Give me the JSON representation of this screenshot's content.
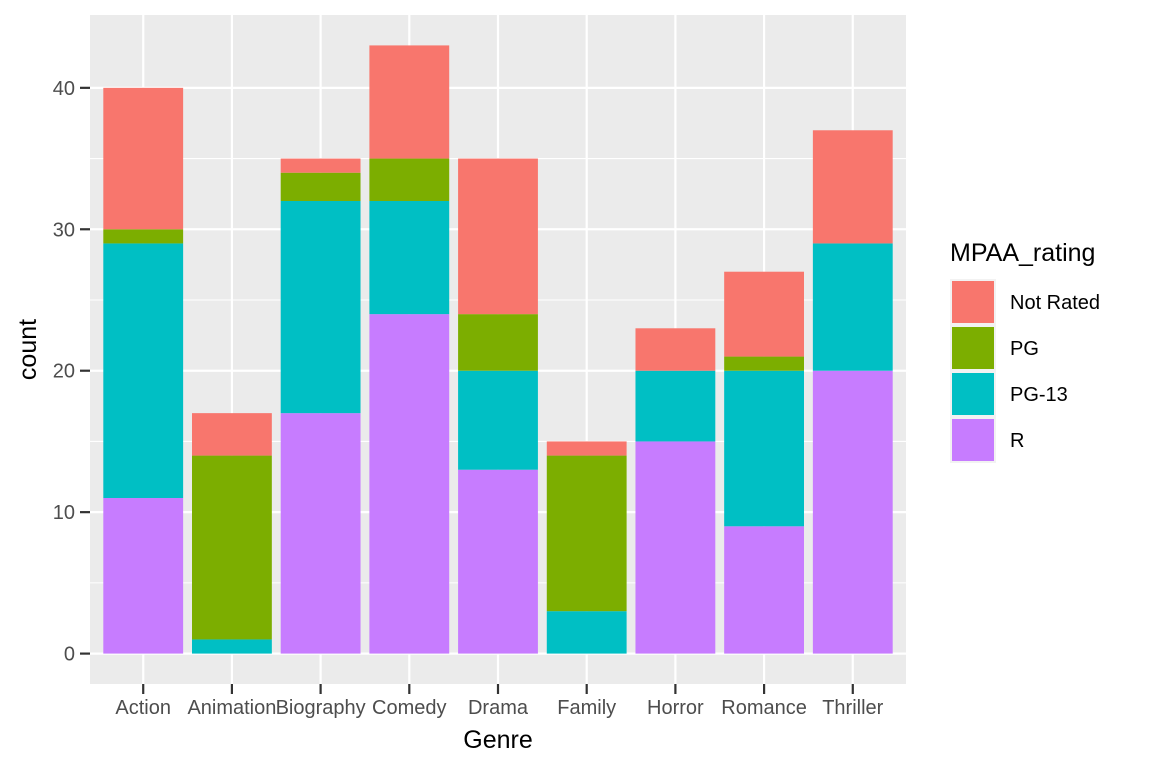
{
  "chart_data": {
    "type": "bar",
    "stacked": true,
    "categories": [
      "Action",
      "Animation",
      "Biography",
      "Comedy",
      "Drama",
      "Family",
      "Horror",
      "Romance",
      "Thriller"
    ],
    "series": [
      {
        "name": "R",
        "color": "#C77CFF",
        "values": [
          11,
          0,
          17,
          24,
          13,
          0,
          15,
          9,
          20
        ]
      },
      {
        "name": "PG-13",
        "color": "#00BFC4",
        "values": [
          18,
          1,
          15,
          8,
          7,
          3,
          5,
          11,
          9
        ]
      },
      {
        "name": "PG",
        "color": "#7CAE00",
        "values": [
          1,
          13,
          2,
          3,
          4,
          11,
          0,
          1,
          0
        ]
      },
      {
        "name": "Not Rated",
        "color": "#F8766D",
        "values": [
          10,
          3,
          1,
          8,
          11,
          1,
          3,
          6,
          8
        ]
      }
    ],
    "legend_order": [
      "Not Rated",
      "PG",
      "PG-13",
      "R"
    ],
    "xlabel": "Genre",
    "ylabel": "count",
    "legend_title": "MPAA_rating",
    "ylim": [
      -2.15,
      45.15
    ],
    "yticks": [
      0,
      10,
      20,
      30,
      40
    ],
    "grid": true,
    "legend_position": "right",
    "panel_background": "#EBEBEB"
  }
}
